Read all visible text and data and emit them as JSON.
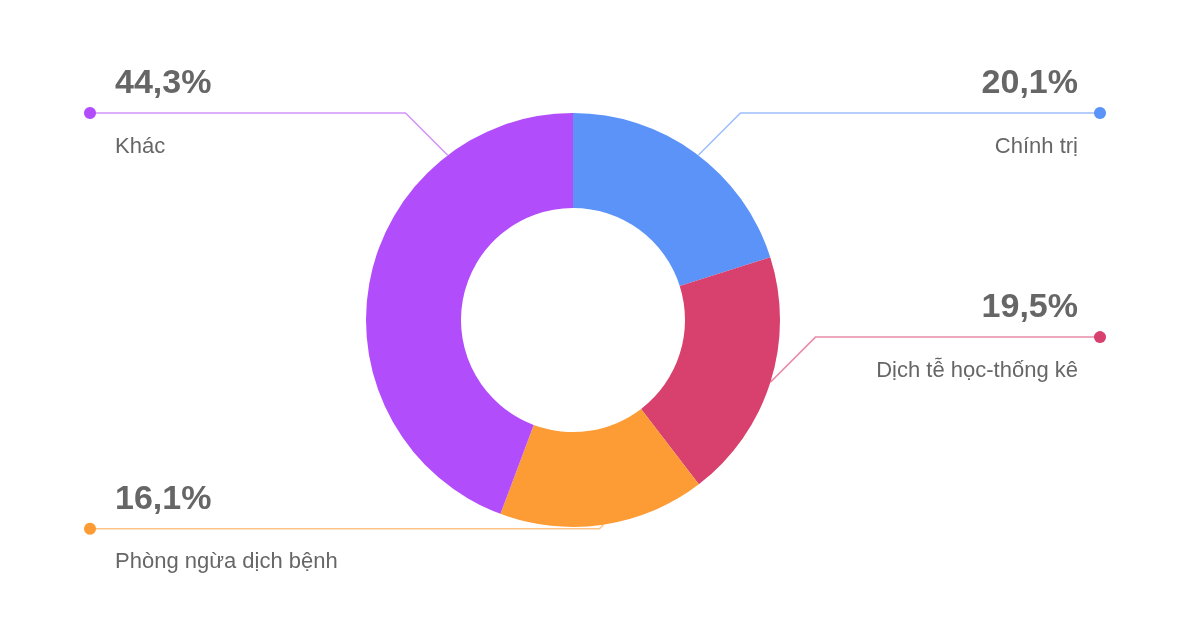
{
  "chart_data": {
    "type": "donut",
    "categories": [
      "Chính trị",
      "Dịch tễ học-thống kê",
      "Phòng ngừa dịch bệnh",
      "Khác"
    ],
    "values": [
      20.1,
      19.5,
      16.1,
      44.3
    ],
    "value_labels": [
      "20,1%",
      "19,5%",
      "16,1%",
      "44,3%"
    ],
    "colors": [
      "#5b93f9",
      "#d8406d",
      "#fd9b35",
      "#b24dfc"
    ],
    "legend": false
  }
}
